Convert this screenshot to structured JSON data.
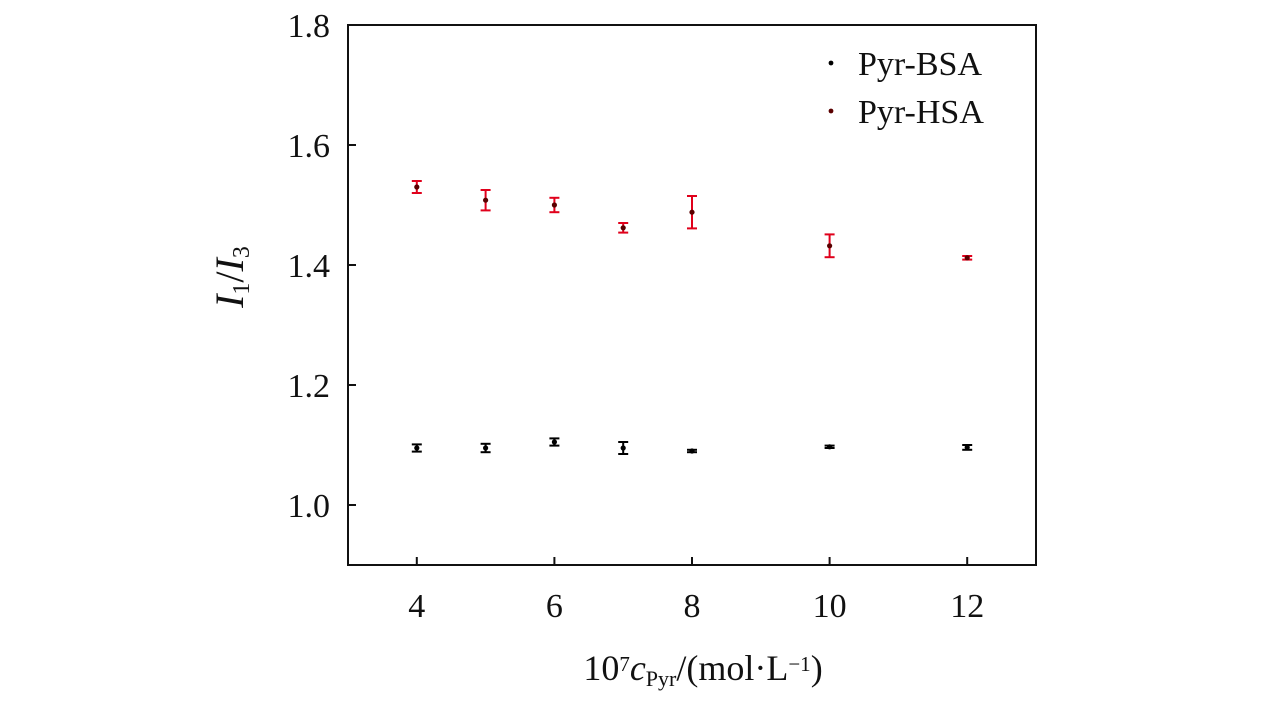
{
  "chart_data": {
    "type": "scatter",
    "title": "",
    "x_axis": {
      "label_parts": [
        {
          "text": "10",
          "style": "normal",
          "shift": "none"
        },
        {
          "text": "7",
          "style": "normal",
          "shift": "super"
        },
        {
          "text": "c",
          "style": "italic",
          "shift": "none"
        },
        {
          "text": "Pyr",
          "style": "normal",
          "shift": "sub"
        },
        {
          "text": "/(mol·L",
          "style": "normal",
          "shift": "none"
        },
        {
          "text": "−1",
          "style": "normal",
          "shift": "super"
        },
        {
          "text": ")",
          "style": "normal",
          "shift": "none"
        }
      ],
      "range": [
        3.0,
        13.0
      ],
      "ticks": [
        4,
        6,
        8,
        10,
        12
      ],
      "tick_labels": [
        "4",
        "6",
        "8",
        "10",
        "12"
      ]
    },
    "y_axis": {
      "label_parts": [
        {
          "text": "I",
          "style": "italic",
          "shift": "none"
        },
        {
          "text": "1",
          "style": "normal",
          "shift": "sub"
        },
        {
          "text": "/",
          "style": "normal",
          "shift": "none"
        },
        {
          "text": "I",
          "style": "italic",
          "shift": "none"
        },
        {
          "text": "3",
          "style": "normal",
          "shift": "sub"
        }
      ],
      "range": [
        0.9,
        1.8
      ],
      "ticks": [
        1.0,
        1.2,
        1.4,
        1.6,
        1.8
      ],
      "tick_labels": [
        "1.0",
        "1.2",
        "1.4",
        "1.6",
        "1.8"
      ]
    },
    "grid": false,
    "legend_position": "top-right",
    "series": [
      {
        "name": "Pyr-BSA",
        "marker_color": "#000000",
        "errorbar_color": "#000000",
        "points": [
          {
            "x": 4,
            "y": 1.095,
            "err": 0.006
          },
          {
            "x": 5,
            "y": 1.095,
            "err": 0.007
          },
          {
            "x": 6,
            "y": 1.105,
            "err": 0.006
          },
          {
            "x": 7,
            "y": 1.095,
            "err": 0.01
          },
          {
            "x": 8,
            "y": 1.09,
            "err": 0.002
          },
          {
            "x": 10,
            "y": 1.097,
            "err": 0.002
          },
          {
            "x": 12,
            "y": 1.096,
            "err": 0.004
          }
        ]
      },
      {
        "name": "Pyr-HSA",
        "marker_color": "#5a0000",
        "errorbar_color": "#e0001b",
        "points": [
          {
            "x": 4,
            "y": 1.53,
            "err": 0.01
          },
          {
            "x": 5,
            "y": 1.508,
            "err": 0.017
          },
          {
            "x": 6,
            "y": 1.5,
            "err": 0.012
          },
          {
            "x": 7,
            "y": 1.462,
            "err": 0.008
          },
          {
            "x": 8,
            "y": 1.488,
            "err": 0.027
          },
          {
            "x": 10,
            "y": 1.432,
            "err": 0.019
          },
          {
            "x": 12,
            "y": 1.412,
            "err": 0.003
          }
        ]
      }
    ]
  }
}
